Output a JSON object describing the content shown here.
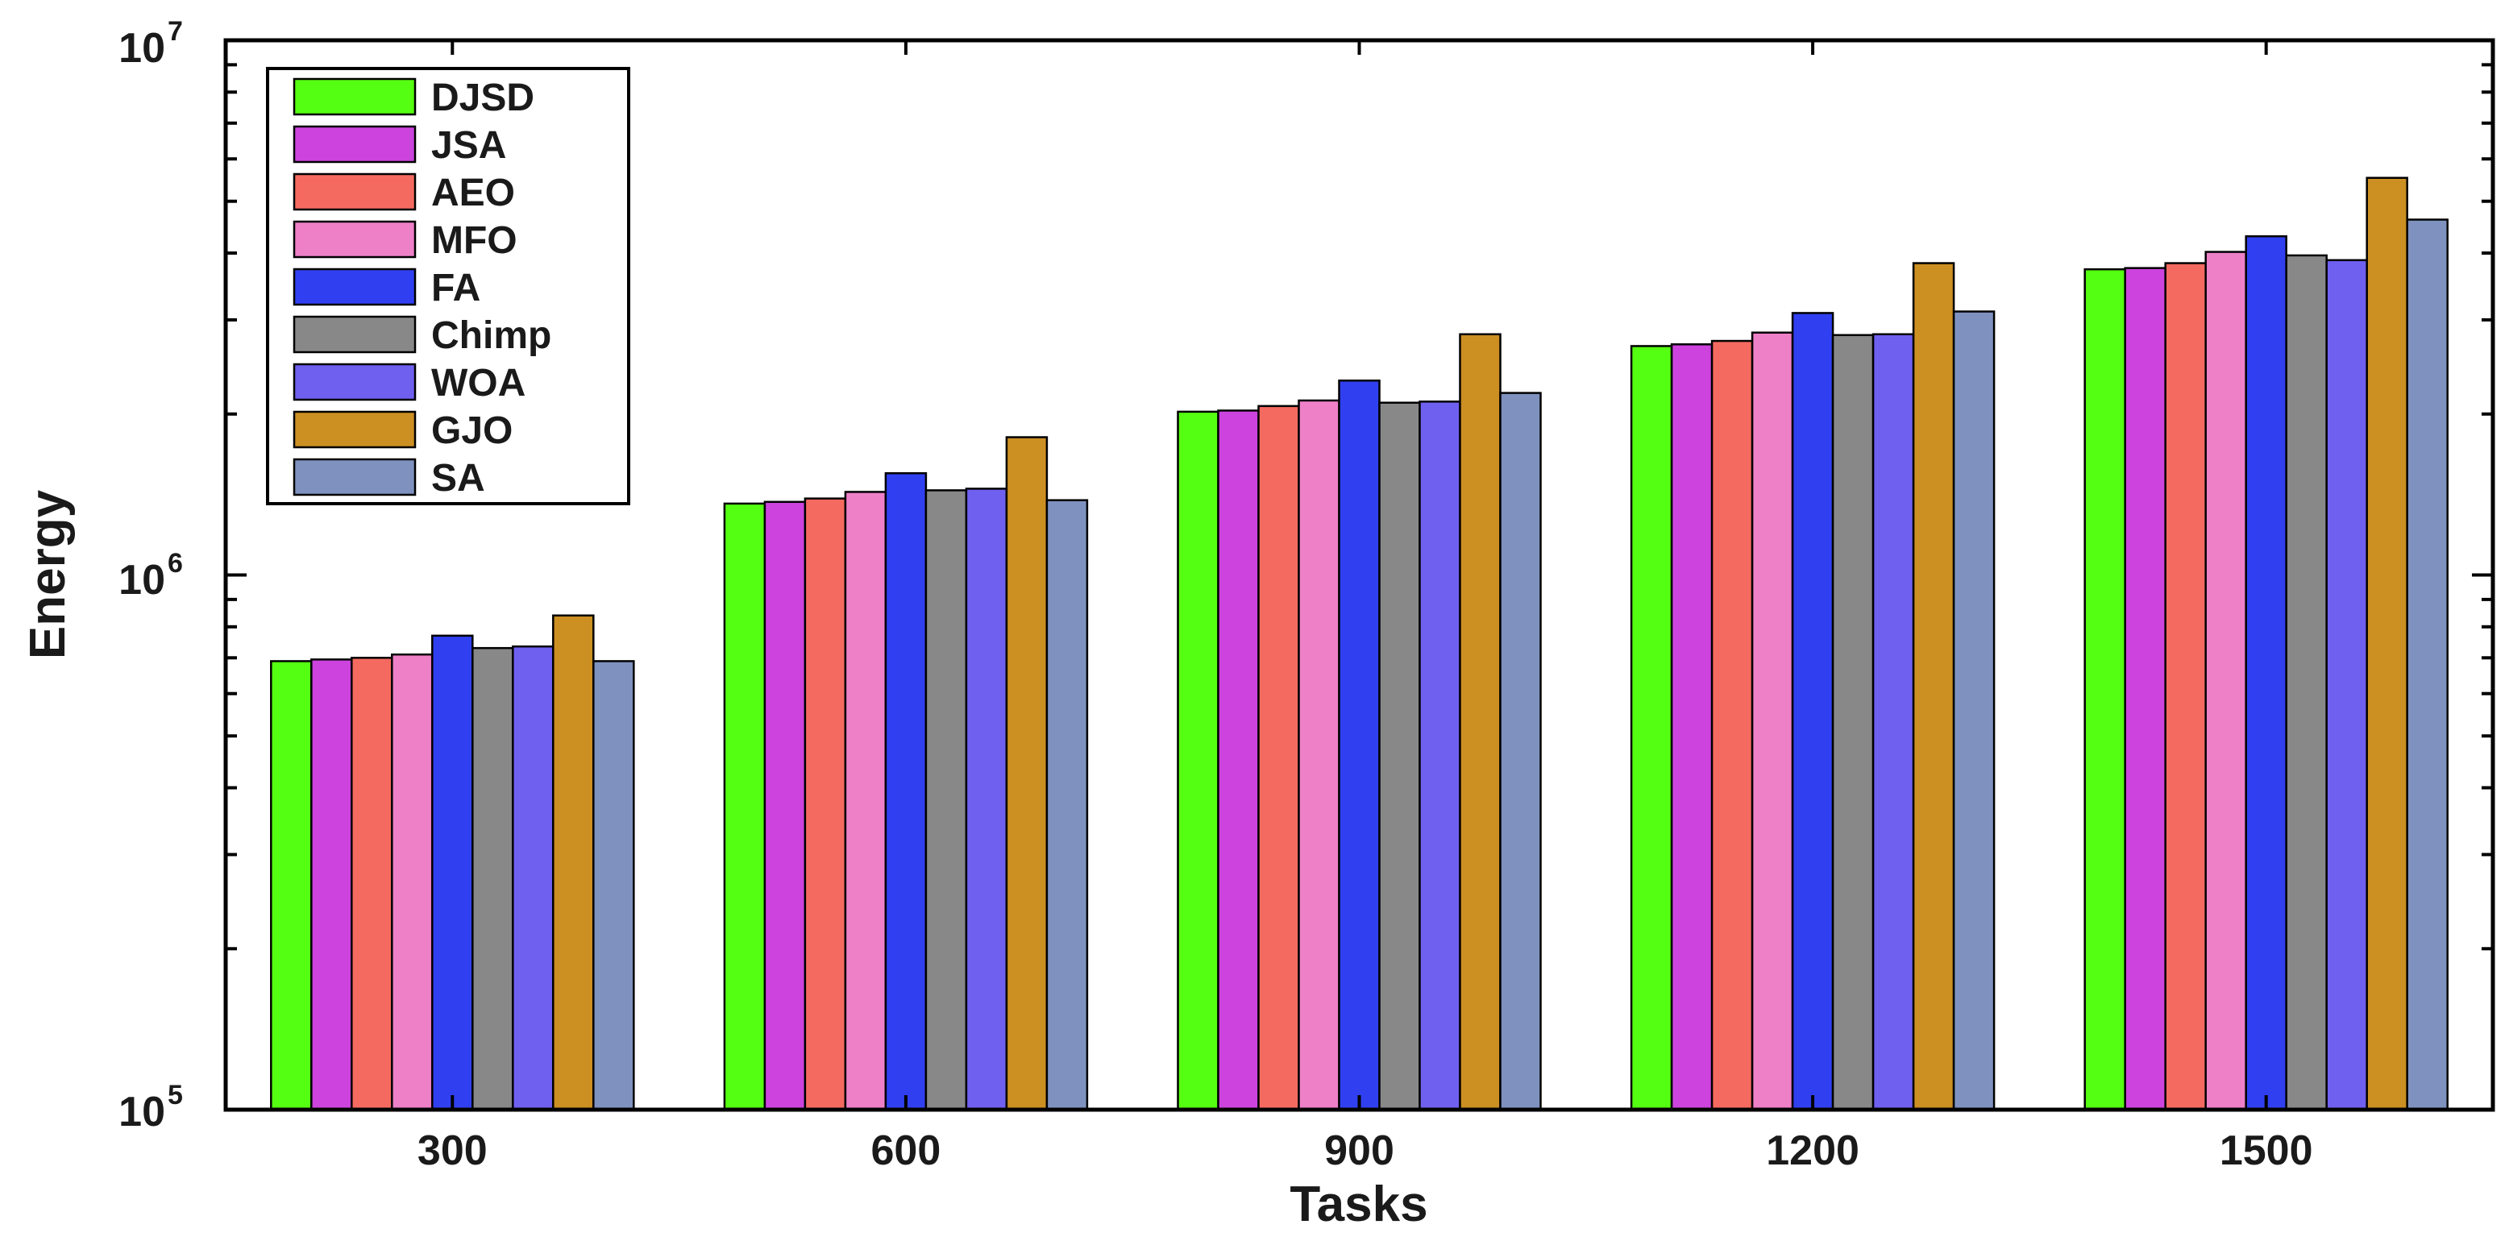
{
  "chart_data": {
    "type": "bar",
    "title": "",
    "xlabel": "Tasks",
    "ylabel": "Energy",
    "yscale": "log",
    "ylim": [
      100000,
      10000000
    ],
    "yticks": [
      {
        "base": "10",
        "exp": "5",
        "value": 100000
      },
      {
        "base": "10",
        "exp": "6",
        "value": 1000000
      },
      {
        "base": "10",
        "exp": "7",
        "value": 10000000
      }
    ],
    "categories": [
      "300",
      "600",
      "900",
      "1200",
      "1500"
    ],
    "legend_position": "top-left",
    "series": [
      {
        "name": "DJSD",
        "color": "#55ff11",
        "values": [
          690000,
          1360000,
          2020000,
          2680000,
          3730000
        ]
      },
      {
        "name": "JSA",
        "color": "#cc44dd",
        "values": [
          695000,
          1370000,
          2030000,
          2700000,
          3750000
        ]
      },
      {
        "name": "AEO",
        "color": "#f56a60",
        "values": [
          700000,
          1390000,
          2070000,
          2740000,
          3830000
        ]
      },
      {
        "name": "MFO",
        "color": "#ee80c8",
        "values": [
          710000,
          1430000,
          2120000,
          2840000,
          4020000
        ]
      },
      {
        "name": "FA",
        "color": "#3040f0",
        "values": [
          770000,
          1550000,
          2310000,
          3090000,
          4300000
        ]
      },
      {
        "name": "Chimp",
        "color": "#888888",
        "values": [
          730000,
          1440000,
          2100000,
          2810000,
          3960000
        ]
      },
      {
        "name": "WOA",
        "color": "#7060f0",
        "values": [
          735000,
          1450000,
          2110000,
          2820000,
          3880000
        ]
      },
      {
        "name": "GJO",
        "color": "#cc8f22",
        "values": [
          840000,
          1810000,
          2820000,
          3830000,
          5530000
        ]
      },
      {
        "name": "SA",
        "color": "#7f92bf",
        "values": [
          690000,
          1380000,
          2190000,
          3110000,
          4620000
        ]
      }
    ]
  }
}
